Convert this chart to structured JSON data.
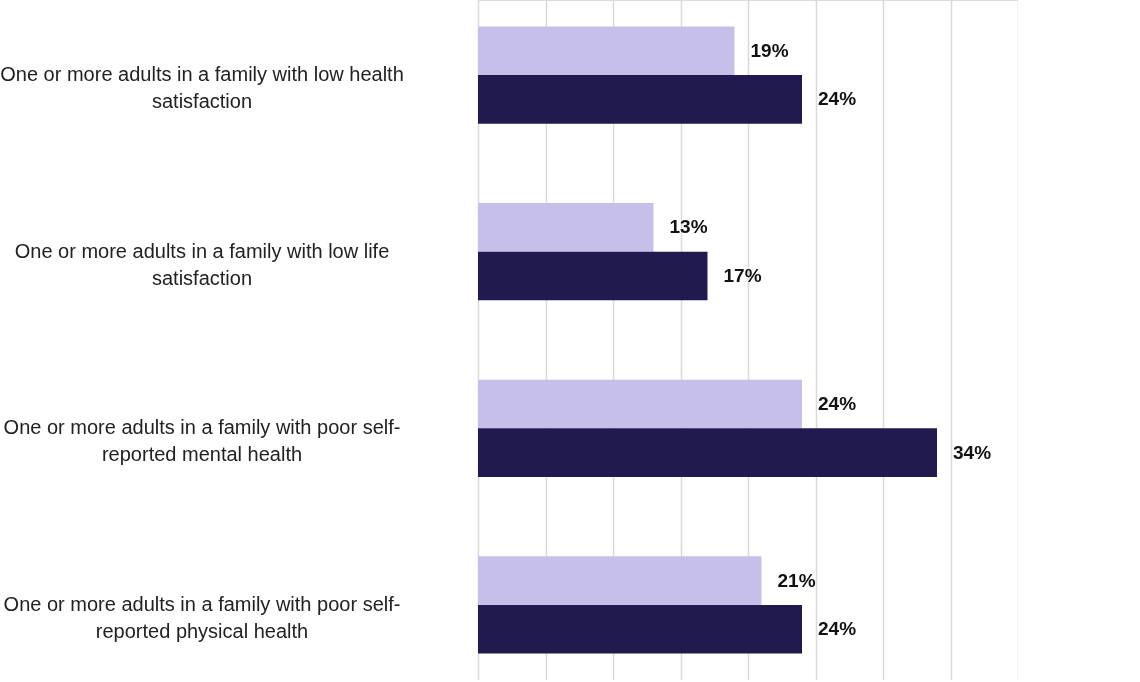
{
  "chart_data": {
    "type": "bar",
    "orientation": "horizontal",
    "categories": [
      "One or more adults in a family with low health satisfaction",
      "One or more adults in a family with low life satisfaction",
      "One or more adults in a family with poor self-reported mental health",
      "One or more adults in a family with poor self-reported physical health"
    ],
    "series": [
      {
        "color": "#c5bfea",
        "values": [
          19,
          13,
          24,
          21
        ],
        "value_labels": [
          "19%",
          "13%",
          "24%",
          "21%"
        ]
      },
      {
        "color": "#211a4f",
        "values": [
          24,
          17,
          34,
          24
        ],
        "value_labels": [
          "24%",
          "17%",
          "34%",
          "24%"
        ]
      }
    ],
    "xlim": [
      0,
      40
    ],
    "xticks": [
      {
        "value": 0,
        "label": null
      },
      {
        "value": 5,
        "label": null
      },
      {
        "value": 10,
        "label": null
      },
      {
        "value": 15,
        "label": null
      },
      {
        "value": 20,
        "label": null
      },
      {
        "value": 25,
        "label": null
      },
      {
        "value": 30,
        "label": null
      },
      {
        "value": 35,
        "label": null
      },
      {
        "value": 40,
        "label": null
      }
    ],
    "grid": "x",
    "tick_labels": false
  }
}
